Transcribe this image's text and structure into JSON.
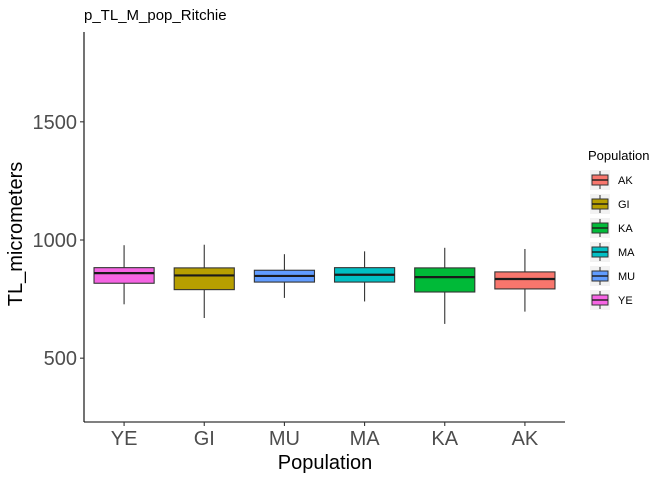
{
  "chart_data": {
    "type": "box",
    "title": "p_TL_M_pop_Ritchie",
    "xlabel": "Population",
    "ylabel": "TL_micrometers",
    "ylim": [
      230,
      1880
    ],
    "yticks": [
      500,
      1000,
      1500
    ],
    "grid": false,
    "legend": {
      "title": "Population",
      "placement": "right",
      "entries": [
        "AK",
        "GI",
        "KA",
        "MA",
        "MU",
        "YE"
      ]
    },
    "categories": [
      "YE",
      "GI",
      "MU",
      "MA",
      "KA",
      "AK"
    ],
    "colors": {
      "AK": "#F8766D",
      "GI": "#B79F00",
      "KA": "#00BA38",
      "MA": "#00BFC4",
      "MU": "#619CFF",
      "YE": "#F564E3"
    },
    "boxes": [
      {
        "group": "YE",
        "whisker_low": 728,
        "q1": 817,
        "median": 860,
        "q3": 883,
        "whisker_high": 978
      },
      {
        "group": "GI",
        "whisker_low": 670,
        "q1": 790,
        "median": 850,
        "q3": 882,
        "whisker_high": 980
      },
      {
        "group": "MU",
        "whisker_low": 755,
        "q1": 822,
        "median": 848,
        "q3": 872,
        "whisker_high": 940
      },
      {
        "group": "MA",
        "whisker_low": 740,
        "q1": 822,
        "median": 853,
        "q3": 883,
        "whisker_high": 952
      },
      {
        "group": "KA",
        "whisker_low": 645,
        "q1": 780,
        "median": 843,
        "q3": 882,
        "whisker_high": 967
      },
      {
        "group": "AK",
        "whisker_low": 697,
        "q1": 793,
        "median": 835,
        "q3": 865,
        "whisker_high": 962
      }
    ]
  }
}
